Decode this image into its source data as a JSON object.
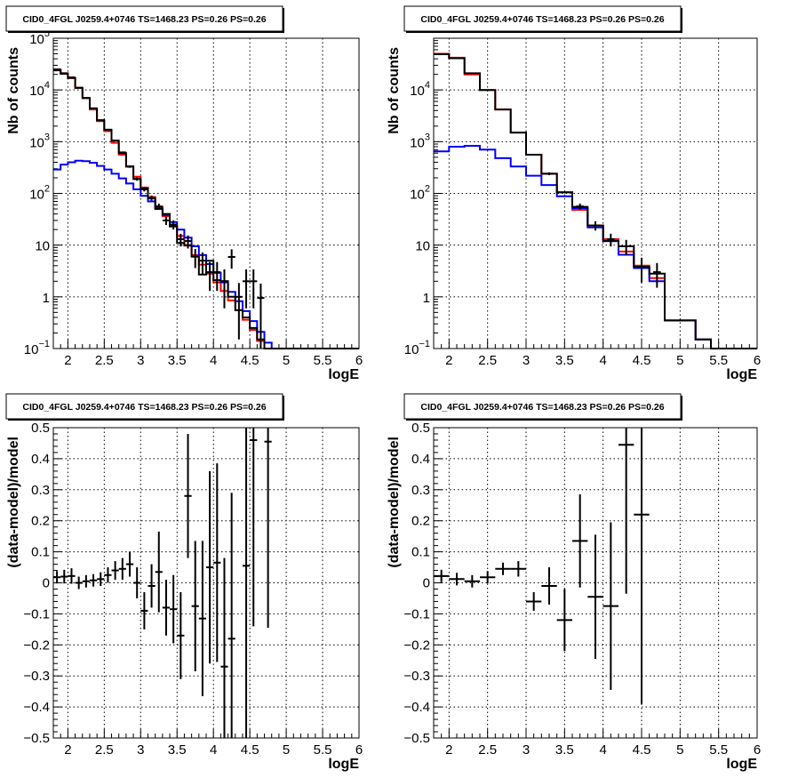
{
  "chart_data": [
    {
      "type": "line",
      "title": "CID0_4FGL J0259.4+0746 TS=1468.23 PS=0.26 PS=0.26",
      "xlabel": "logE",
      "ylabel": "Nb of counts",
      "xlim": [
        1.8,
        6.0
      ],
      "ylim": [
        0.1,
        100000
      ],
      "log_y": true,
      "grid": true,
      "x_ticks": [
        2,
        2.5,
        3,
        3.5,
        4,
        4.5,
        5,
        5.5,
        6
      ],
      "x_tick_labels": [
        "2",
        "2.5",
        "3",
        "3.5",
        "4",
        "4.5",
        "5",
        "5.5",
        "6"
      ],
      "y_ticks": [
        0.1,
        1,
        10,
        100,
        1000,
        10000,
        100000
      ],
      "y_tick_labels": [
        {
          "base": "10",
          "exp": "−1"
        },
        {
          "base": "1",
          "exp": ""
        },
        {
          "base": "10",
          "exp": ""
        },
        {
          "base": "10",
          "exp": "2"
        },
        {
          "base": "10",
          "exp": "3"
        },
        {
          "base": "10",
          "exp": "4"
        },
        {
          "base": "10",
          "exp": "5"
        }
      ],
      "bin_edges": [
        1.8,
        1.9,
        2.0,
        2.1,
        2.2,
        2.3,
        2.4,
        2.5,
        2.6,
        2.7,
        2.8,
        2.9,
        3.0,
        3.1,
        3.2,
        3.3,
        3.4,
        3.5,
        3.6,
        3.7,
        3.8,
        3.9,
        4.0,
        4.1,
        4.2,
        4.3,
        4.4,
        4.5,
        4.6,
        4.7,
        4.8,
        4.9,
        5.0,
        5.1,
        5.2,
        5.3,
        5.4,
        5.5,
        5.6,
        5.7,
        5.8,
        5.9,
        6.0
      ],
      "series": [
        {
          "color": "#ff0000",
          "values": [
            25000,
            21000,
            17000,
            11000,
            7000,
            4200,
            2500,
            1600,
            950,
            560,
            330,
            210,
            130,
            85,
            55,
            36,
            23,
            15,
            9.8,
            6.4,
            4.2,
            2.8,
            1.9,
            1.3,
            0.85,
            0.55,
            0.36,
            0.23,
            0.14,
            0.1,
            0.1,
            0.1,
            0.1,
            0.1,
            0.1,
            0.1,
            0.1,
            0.1,
            0.1,
            0.1,
            0.1,
            0.1
          ]
        },
        {
          "color": "#0000ff",
          "values": [
            290,
            360,
            400,
            430,
            420,
            390,
            340,
            290,
            240,
            195,
            155,
            120,
            90,
            70,
            52,
            38,
            28,
            20,
            14,
            9.5,
            6.4,
            4.3,
            2.9,
            1.9,
            1.25,
            0.82,
            0.53,
            0.34,
            0.21,
            0.13,
            0.1,
            0.1,
            0.1,
            0.1,
            0.1,
            0.1,
            0.1,
            0.1,
            0.1,
            0.1,
            0.1,
            0.1
          ]
        },
        {
          "color": "#000000",
          "values": [
            24000,
            20500,
            17000,
            11000,
            7000,
            4400,
            2600,
            1700,
            1050,
            600,
            330,
            190,
            125,
            80,
            50,
            40,
            23,
            11,
            10,
            6,
            2.7,
            5,
            2.1,
            2,
            1,
            0.55,
            0.4,
            0.25,
            0.15,
            0.1,
            0.1,
            0.1,
            0.1,
            0.1,
            0.1,
            0.1,
            0.1,
            0.1,
            0.1,
            0.1,
            0.1,
            0.1
          ]
        }
      ],
      "points": [
        {
          "x": 1.85,
          "y": 25000,
          "err": 160
        },
        {
          "x": 1.95,
          "y": 21000,
          "err": 145
        },
        {
          "x": 2.05,
          "y": 17500,
          "err": 132
        },
        {
          "x": 2.15,
          "y": 11000,
          "err": 105
        },
        {
          "x": 2.25,
          "y": 7000,
          "err": 84
        },
        {
          "x": 2.35,
          "y": 4400,
          "err": 66
        },
        {
          "x": 2.45,
          "y": 2600,
          "err": 51
        },
        {
          "x": 2.55,
          "y": 1700,
          "err": 41
        },
        {
          "x": 2.65,
          "y": 1050,
          "err": 32
        },
        {
          "x": 2.75,
          "y": 620,
          "err": 25
        },
        {
          "x": 2.85,
          "y": 330,
          "err": 18
        },
        {
          "x": 2.95,
          "y": 190,
          "err": 14
        },
        {
          "x": 3.05,
          "y": 120,
          "err": 11
        },
        {
          "x": 3.15,
          "y": 82,
          "err": 9
        },
        {
          "x": 3.25,
          "y": 56,
          "err": 7.5
        },
        {
          "x": 3.35,
          "y": 30,
          "err": 5.5
        },
        {
          "x": 3.45,
          "y": 25,
          "err": 5
        },
        {
          "x": 3.55,
          "y": 13,
          "err": 3.6
        },
        {
          "x": 3.65,
          "y": 12,
          "err": 3.4
        },
        {
          "x": 3.75,
          "y": 6,
          "err": 2.4
        },
        {
          "x": 3.85,
          "y": 5,
          "err": 2.2
        },
        {
          "x": 3.95,
          "y": 3,
          "err": 1.7
        },
        {
          "x": 4.05,
          "y": 3,
          "err": 1.7
        },
        {
          "x": 4.15,
          "y": 2,
          "err": 1.4
        },
        {
          "x": 4.25,
          "y": 5.9,
          "err": 2.4
        },
        {
          "x": 4.35,
          "y": 1,
          "err": 0.85
        },
        {
          "x": 4.45,
          "y": 2,
          "err": 1.4
        },
        {
          "x": 4.55,
          "y": 2,
          "err": 1.4
        },
        {
          "x": 4.65,
          "y": 0.95,
          "err": 0.85
        }
      ]
    },
    {
      "type": "line",
      "title": "CID0_4FGL J0259.4+0746 TS=1468.23 PS=0.26 PS=0.26",
      "xlabel": "logE",
      "ylabel": "Nb of counts",
      "xlim": [
        1.8,
        6.0
      ],
      "ylim": [
        0.1,
        100000
      ],
      "log_y": true,
      "grid": true,
      "x_ticks": [
        2,
        2.5,
        3,
        3.5,
        4,
        4.5,
        5,
        5.5,
        6
      ],
      "x_tick_labels": [
        "2",
        "2.5",
        "3",
        "3.5",
        "4",
        "4.5",
        "5",
        "5.5",
        "6"
      ],
      "y_ticks": [
        0.1,
        1,
        10,
        100,
        1000,
        10000
      ],
      "y_tick_labels": [
        {
          "base": "10",
          "exp": "−1"
        },
        {
          "base": "1",
          "exp": ""
        },
        {
          "base": "10",
          "exp": ""
        },
        {
          "base": "10",
          "exp": "2"
        },
        {
          "base": "10",
          "exp": "3"
        },
        {
          "base": "10",
          "exp": "4"
        }
      ],
      "bin_edges": [
        1.8,
        2.0,
        2.2,
        2.4,
        2.6,
        2.8,
        3.0,
        3.2,
        3.4,
        3.6,
        3.8,
        4.0,
        4.2,
        4.4,
        4.6,
        4.8,
        5.0,
        5.2,
        5.4,
        5.6,
        5.8,
        6.0
      ],
      "series": [
        {
          "color": "#ff0000",
          "values": [
            50000,
            42000,
            20000,
            10000,
            4200,
            1500,
            560,
            240,
            105,
            48,
            24,
            13,
            7.5,
            4,
            2.3,
            0.35,
            0.35,
            0.15,
            0.1,
            0.1,
            0.1
          ]
        },
        {
          "color": "#0000ff",
          "values": [
            650,
            800,
            830,
            700,
            480,
            330,
            220,
            145,
            88,
            52,
            22,
            12,
            6.5,
            3.6,
            2,
            0.35,
            0.35,
            0.15,
            0.1,
            0.1,
            0.1
          ]
        },
        {
          "color": "#000000",
          "values": [
            49000,
            41000,
            21000,
            10000,
            4200,
            1500,
            560,
            240,
            105,
            55,
            24,
            12,
            9.5,
            3.8,
            2.8,
            0.35,
            0.35,
            0.15,
            0.1,
            0.1,
            0.1
          ]
        }
      ],
      "points": [
        {
          "x": 3.3,
          "y": 240,
          "err": 15
        },
        {
          "x": 3.7,
          "y": 56,
          "err": 7.5
        },
        {
          "x": 3.9,
          "y": 24,
          "err": 4.9
        },
        {
          "x": 4.1,
          "y": 13,
          "err": 3.6
        },
        {
          "x": 4.3,
          "y": 9.5,
          "err": 3.1
        },
        {
          "x": 4.5,
          "y": 3.8,
          "err": 1.9
        },
        {
          "x": 4.7,
          "y": 3,
          "err": 1.5
        }
      ]
    },
    {
      "type": "scatter",
      "title": "CID0_4FGL J0259.4+0746 TS=1468.23 PS=0.26 PS=0.26",
      "xlabel": "logE",
      "ylabel": "(data-model)/model",
      "xlim": [
        1.8,
        6.0
      ],
      "ylim": [
        -0.5,
        0.5
      ],
      "grid": true,
      "x_ticks": [
        2,
        2.5,
        3,
        3.5,
        4,
        4.5,
        5,
        5.5,
        6
      ],
      "x_tick_labels": [
        "2",
        "2.5",
        "3",
        "3.5",
        "4",
        "4.5",
        "5",
        "5.5",
        "6"
      ],
      "y_ticks": [
        -0.5,
        -0.4,
        -0.3,
        -0.2,
        -0.1,
        0,
        0.1,
        0.2,
        0.3,
        0.4,
        0.5
      ],
      "y_tick_labels": [
        "−0.5",
        "−0.4",
        "−0.3",
        "−0.2",
        "−0.1",
        "0",
        "0.1",
        "0.2",
        "0.3",
        "0.4",
        "0.5"
      ],
      "bin_width": 0.1,
      "points": [
        {
          "x": 1.85,
          "y": 0.018,
          "err": 0.02
        },
        {
          "x": 1.95,
          "y": 0.02,
          "err": 0.022
        },
        {
          "x": 2.05,
          "y": 0.022,
          "err": 0.025
        },
        {
          "x": 2.15,
          "y": 0.0,
          "err": 0.02
        },
        {
          "x": 2.25,
          "y": 0.005,
          "err": 0.02
        },
        {
          "x": 2.35,
          "y": 0.008,
          "err": 0.02
        },
        {
          "x": 2.45,
          "y": 0.012,
          "err": 0.022
        },
        {
          "x": 2.55,
          "y": 0.025,
          "err": 0.025
        },
        {
          "x": 2.65,
          "y": 0.04,
          "err": 0.03
        },
        {
          "x": 2.75,
          "y": 0.045,
          "err": 0.035
        },
        {
          "x": 2.85,
          "y": 0.06,
          "err": 0.04
        },
        {
          "x": 2.95,
          "y": 0.0,
          "err": 0.05
        },
        {
          "x": 3.05,
          "y": -0.09,
          "err": 0.06
        },
        {
          "x": 3.15,
          "y": -0.01,
          "err": 0.07
        },
        {
          "x": 3.25,
          "y": 0.035,
          "err": 0.13
        },
        {
          "x": 3.35,
          "y": -0.08,
          "err": 0.09
        },
        {
          "x": 3.45,
          "y": -0.085,
          "err": 0.11
        },
        {
          "x": 3.55,
          "y": -0.17,
          "err": 0.14
        },
        {
          "x": 3.65,
          "y": 0.28,
          "err": 0.2
        },
        {
          "x": 3.75,
          "y": -0.075,
          "err": 0.21
        },
        {
          "x": 3.85,
          "y": -0.115,
          "err": 0.25
        },
        {
          "x": 3.95,
          "y": 0.05,
          "err": 0.31
        },
        {
          "x": 4.05,
          "y": 0.065,
          "err": 0.32
        },
        {
          "x": 4.15,
          "y": -0.27,
          "err": 0.35
        },
        {
          "x": 4.25,
          "y": -0.18,
          "err": 0.47
        },
        {
          "x": 4.45,
          "y": 0.055,
          "err": 0.6
        },
        {
          "x": 4.55,
          "y": 0.46,
          "err": 0.6
        },
        {
          "x": 4.75,
          "y": 0.455,
          "err": 0.6
        }
      ]
    },
    {
      "type": "scatter",
      "title": "CID0_4FGL J0259.4+0746 TS=1468.23 PS=0.26 PS=0.26",
      "xlabel": "logE",
      "ylabel": "(data-model)/model",
      "xlim": [
        1.8,
        6.0
      ],
      "ylim": [
        -0.5,
        0.5
      ],
      "grid": true,
      "x_ticks": [
        2,
        2.5,
        3,
        3.5,
        4,
        4.5,
        5,
        5.5,
        6
      ],
      "x_tick_labels": [
        "2",
        "2.5",
        "3",
        "3.5",
        "4",
        "4.5",
        "5",
        "5.5",
        "6"
      ],
      "y_ticks": [
        -0.5,
        -0.4,
        -0.3,
        -0.2,
        -0.1,
        0,
        0.1,
        0.2,
        0.3,
        0.4,
        0.5
      ],
      "y_tick_labels": [
        "−0.5",
        "−0.4",
        "−0.3",
        "−0.2",
        "−0.1",
        "0",
        "0.1",
        "0.2",
        "0.3",
        "0.4",
        "0.5"
      ],
      "bin_width": 0.2,
      "points": [
        {
          "x": 1.9,
          "y": 0.022,
          "err": 0.02
        },
        {
          "x": 2.1,
          "y": 0.012,
          "err": 0.02
        },
        {
          "x": 2.3,
          "y": 0.005,
          "err": 0.02
        },
        {
          "x": 2.5,
          "y": 0.018,
          "err": 0.02
        },
        {
          "x": 2.7,
          "y": 0.045,
          "err": 0.02
        },
        {
          "x": 2.9,
          "y": 0.045,
          "err": 0.025
        },
        {
          "x": 3.1,
          "y": -0.06,
          "err": 0.03
        },
        {
          "x": 3.3,
          "y": -0.01,
          "err": 0.06
        },
        {
          "x": 3.5,
          "y": -0.12,
          "err": 0.1
        },
        {
          "x": 3.7,
          "y": 0.135,
          "err": 0.15
        },
        {
          "x": 3.9,
          "y": -0.045,
          "err": 0.2
        },
        {
          "x": 4.1,
          "y": -0.075,
          "err": 0.27
        },
        {
          "x": 4.3,
          "y": 0.445,
          "err": 0.48
        },
        {
          "x": 4.5,
          "y": 0.22,
          "err": 0.61
        }
      ]
    }
  ]
}
